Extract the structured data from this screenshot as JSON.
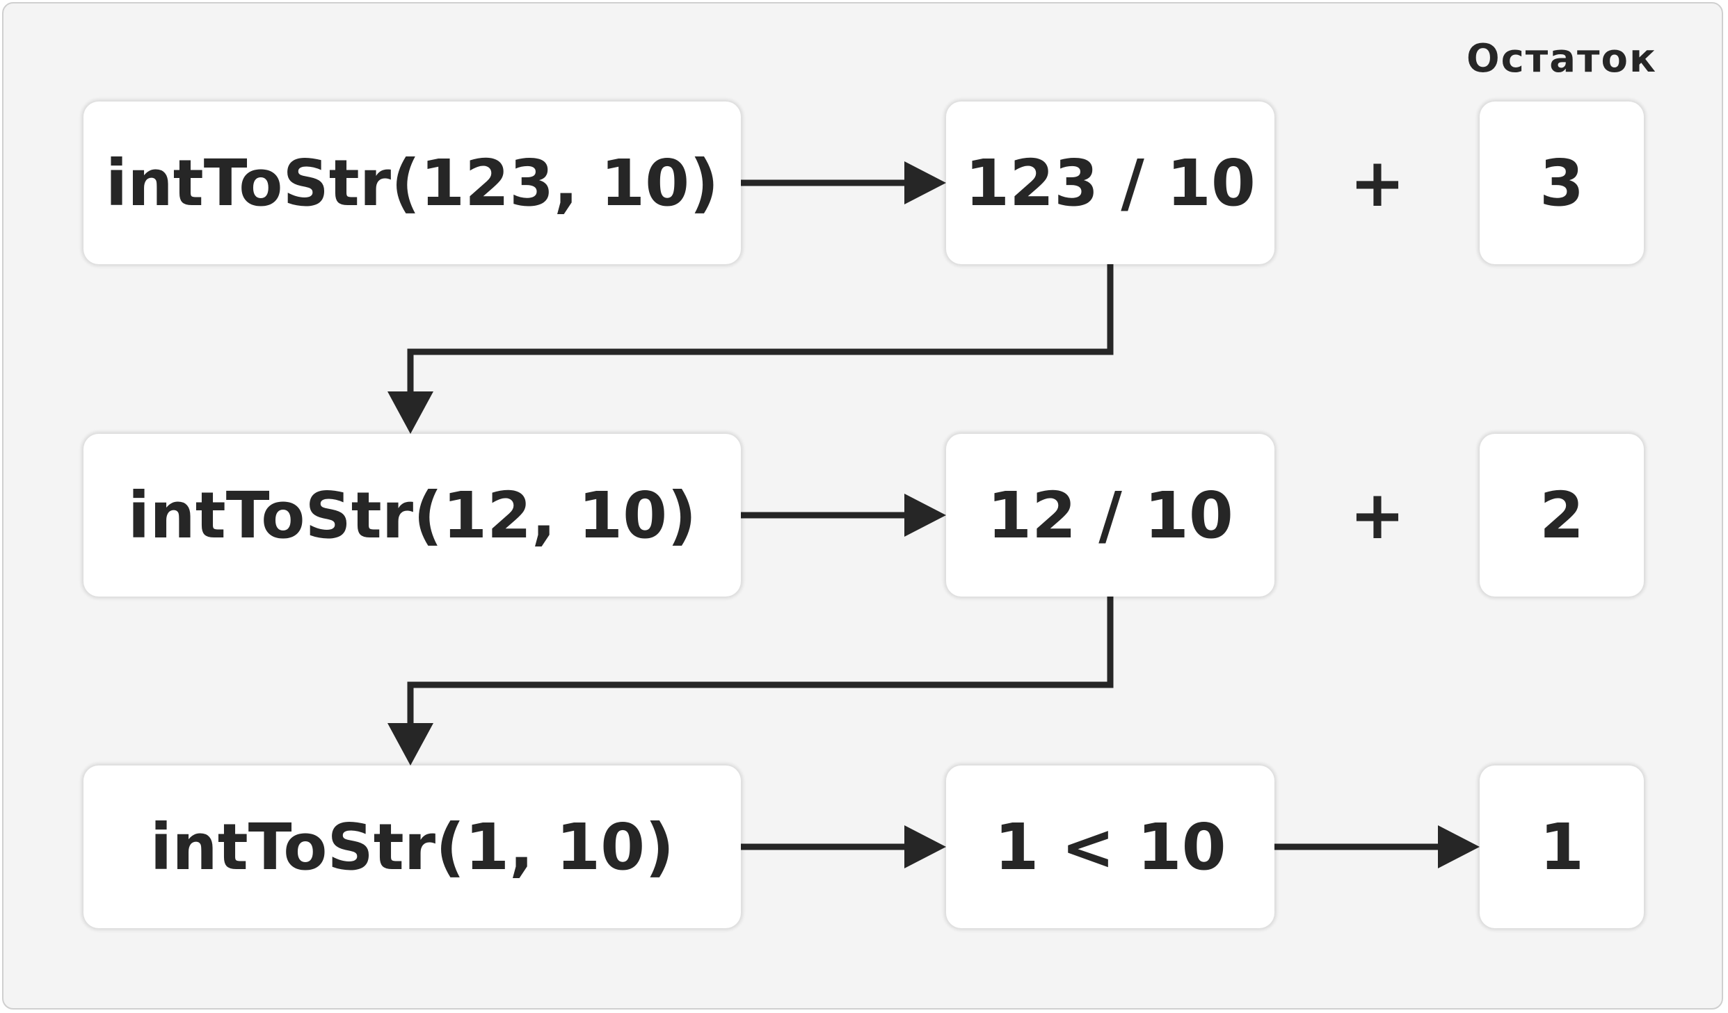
{
  "heading": "Остаток",
  "rows": [
    {
      "call": "intToStr(123, 10)",
      "op": "123 / 10",
      "joiner": "+",
      "remainder": "3"
    },
    {
      "call": "intToStr(12, 10)",
      "op": "12 / 10",
      "joiner": "+",
      "remainder": "2"
    },
    {
      "call": "intToStr(1, 10)",
      "op": "1 < 10",
      "joiner": "",
      "remainder": "1"
    }
  ],
  "colors": {
    "stroke": "#262626",
    "box": "#ffffff",
    "background": "#f4f4f4"
  }
}
